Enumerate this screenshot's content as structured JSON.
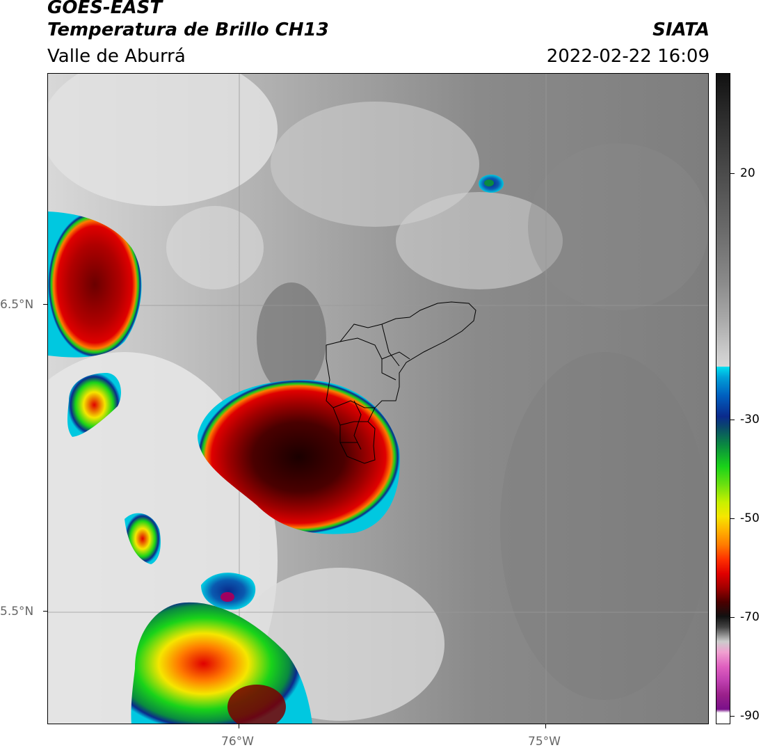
{
  "header": {
    "title": "GOES-EAST",
    "subtitle": "Temperatura de Brillo CH13",
    "region": "Valle de Aburrá",
    "organization": "SIATA",
    "timestamp": "2022-02-22 16:09"
  },
  "axes": {
    "lat_labels": [
      "6.5°N",
      "5.5°N"
    ],
    "lon_labels": [
      "76°W",
      "75°W"
    ]
  },
  "colorbar": {
    "labels": [
      "20",
      "-30",
      "-50",
      "-70",
      "-90"
    ],
    "colors": {
      "warm_dark": "#111111",
      "warm_gray": "#888888",
      "light": "#eeeeee",
      "cyan": "#00c8e0",
      "blue": "#0a2a8c",
      "green": "#19d319",
      "yellow": "#f5e600",
      "orange": "#ff7a00",
      "red": "#e00000",
      "dark_red": "#4a0000",
      "magenta": "#d040c0",
      "purple": "#7a108a"
    }
  }
}
